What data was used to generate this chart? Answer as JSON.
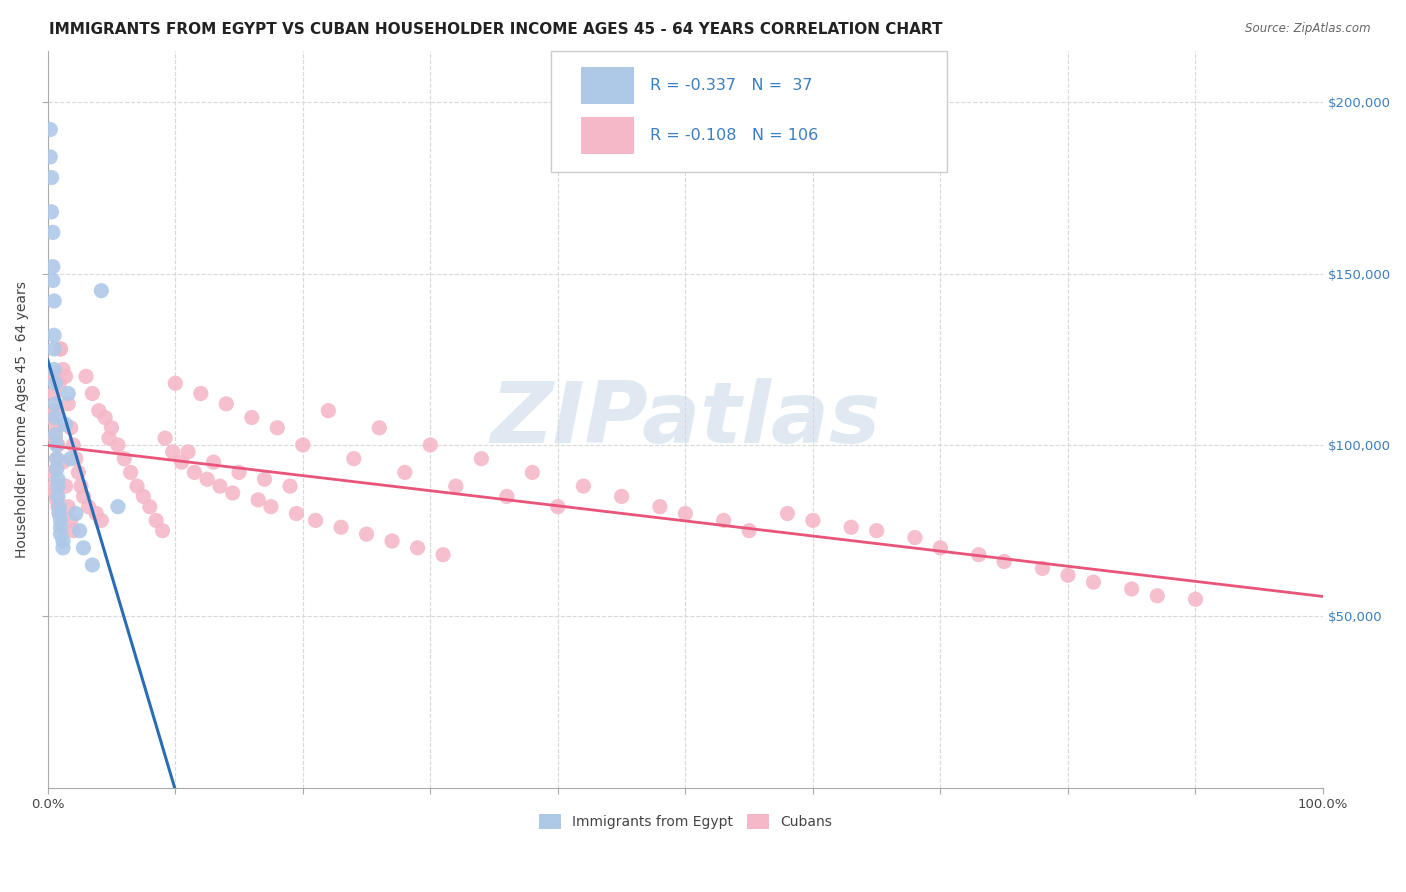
{
  "title": "IMMIGRANTS FROM EGYPT VS CUBAN HOUSEHOLDER INCOME AGES 45 - 64 YEARS CORRELATION CHART",
  "source": "Source: ZipAtlas.com",
  "ylabel": "Householder Income Ages 45 - 64 years",
  "ytick_labels": [
    "$50,000",
    "$100,000",
    "$150,000",
    "$200,000"
  ],
  "ytick_values": [
    50000,
    100000,
    150000,
    200000
  ],
  "ylim": [
    0,
    215000
  ],
  "xlim": [
    0.0,
    1.0
  ],
  "legend_label1": "Immigrants from Egypt",
  "legend_label2": "Cubans",
  "egypt_color": "#aec9e8",
  "cuba_color": "#f4b8c8",
  "egypt_line_color": "#2a6db5",
  "cuba_line_color": "#e8547a",
  "egypt_dash_color": "#b0c8e8",
  "background_color": "#ffffff",
  "grid_color": "#d8d8d8",
  "title_fontsize": 11,
  "axis_label_fontsize": 10,
  "tick_fontsize": 9.5,
  "legend_text_color": "#3a7fc1",
  "watermark_text": "ZIPatlas",
  "watermark_color": "#c8d8e8",
  "egypt_R": -0.337,
  "egypt_N": 37,
  "cuba_R": -0.108,
  "cuba_N": 106,
  "egypt_x": [
    0.002,
    0.002,
    0.003,
    0.003,
    0.004,
    0.004,
    0.004,
    0.005,
    0.005,
    0.005,
    0.005,
    0.006,
    0.006,
    0.006,
    0.006,
    0.007,
    0.007,
    0.007,
    0.008,
    0.008,
    0.008,
    0.009,
    0.009,
    0.01,
    0.01,
    0.01,
    0.012,
    0.012,
    0.014,
    0.016,
    0.018,
    0.022,
    0.025,
    0.028,
    0.035,
    0.042,
    0.055
  ],
  "egypt_y": [
    192000,
    184000,
    178000,
    168000,
    162000,
    152000,
    148000,
    142000,
    132000,
    128000,
    122000,
    118000,
    112000,
    108000,
    103000,
    100000,
    96000,
    93000,
    90000,
    88000,
    85000,
    82000,
    80000,
    78000,
    76000,
    74000,
    72000,
    70000,
    106000,
    115000,
    96000,
    80000,
    75000,
    70000,
    65000,
    145000,
    82000
  ],
  "cuba_x": [
    0.003,
    0.004,
    0.004,
    0.005,
    0.005,
    0.006,
    0.006,
    0.006,
    0.007,
    0.007,
    0.007,
    0.008,
    0.008,
    0.009,
    0.009,
    0.01,
    0.01,
    0.012,
    0.012,
    0.014,
    0.014,
    0.016,
    0.016,
    0.018,
    0.018,
    0.02,
    0.02,
    0.022,
    0.024,
    0.026,
    0.028,
    0.03,
    0.032,
    0.035,
    0.038,
    0.04,
    0.042,
    0.045,
    0.048,
    0.05,
    0.055,
    0.06,
    0.065,
    0.07,
    0.075,
    0.08,
    0.085,
    0.09,
    0.1,
    0.11,
    0.12,
    0.13,
    0.14,
    0.15,
    0.16,
    0.17,
    0.18,
    0.19,
    0.2,
    0.22,
    0.24,
    0.26,
    0.28,
    0.3,
    0.32,
    0.34,
    0.36,
    0.38,
    0.4,
    0.42,
    0.45,
    0.48,
    0.5,
    0.53,
    0.55,
    0.58,
    0.6,
    0.63,
    0.65,
    0.68,
    0.7,
    0.73,
    0.75,
    0.78,
    0.8,
    0.82,
    0.85,
    0.87,
    0.9,
    0.092,
    0.098,
    0.105,
    0.115,
    0.125,
    0.135,
    0.145,
    0.165,
    0.175,
    0.195,
    0.21,
    0.23,
    0.25,
    0.27,
    0.29,
    0.31
  ],
  "cuba_y": [
    108000,
    120000,
    92000,
    115000,
    88000,
    110000,
    86000,
    102000,
    105000,
    96000,
    84000,
    100000,
    82000,
    118000,
    80000,
    128000,
    128000,
    122000,
    95000,
    120000,
    88000,
    112000,
    82000,
    105000,
    78000,
    100000,
    75000,
    96000,
    92000,
    88000,
    85000,
    120000,
    82000,
    115000,
    80000,
    110000,
    78000,
    108000,
    102000,
    105000,
    100000,
    96000,
    92000,
    88000,
    85000,
    82000,
    78000,
    75000,
    118000,
    98000,
    115000,
    95000,
    112000,
    92000,
    108000,
    90000,
    105000,
    88000,
    100000,
    110000,
    96000,
    105000,
    92000,
    100000,
    88000,
    96000,
    85000,
    92000,
    82000,
    88000,
    85000,
    82000,
    80000,
    78000,
    75000,
    80000,
    78000,
    76000,
    75000,
    73000,
    70000,
    68000,
    66000,
    64000,
    62000,
    60000,
    58000,
    56000,
    55000,
    102000,
    98000,
    95000,
    92000,
    90000,
    88000,
    86000,
    84000,
    82000,
    80000,
    78000,
    76000,
    74000,
    72000,
    70000,
    68000
  ]
}
